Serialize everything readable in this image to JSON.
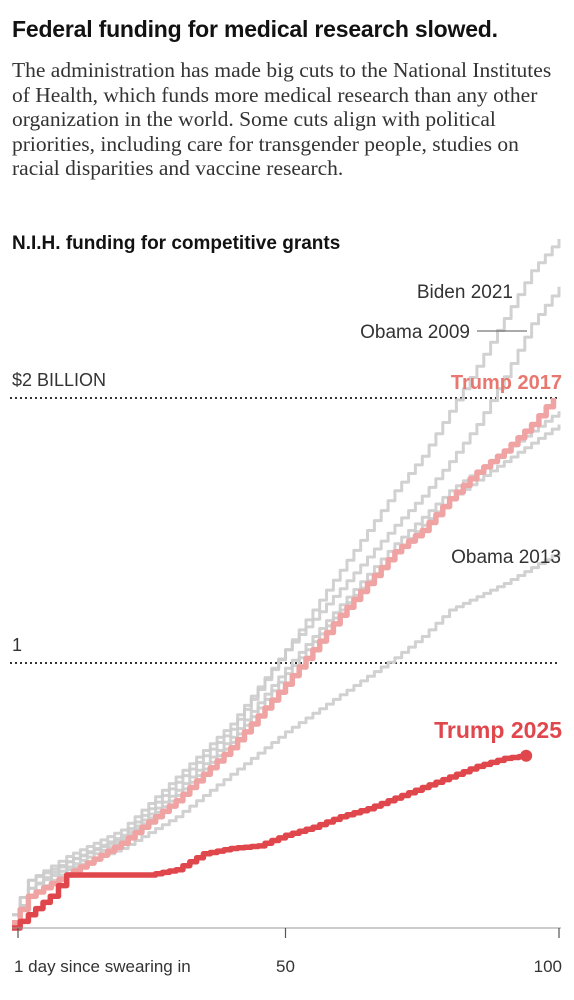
{
  "headline": "Federal funding for medical research slowed.",
  "dek": "The administration has made big cuts to the National Institutes of Health, which funds more medical research than any other organization in the world. Some cuts align with political priorities, including care for transgender people, studies on racial disparities and vaccine research.",
  "colors": {
    "trump2025": "#e0474c",
    "trump2017": "#f0a3a3",
    "trump2017_label": "#e8776f",
    "others": "#cccccc",
    "dots": "#333333"
  },
  "chart_data": {
    "type": "line",
    "title": "N.I.H. funding for competitive grants",
    "xlabel": "",
    "ylabel": "",
    "xlim": [
      0,
      100
    ],
    "ylim": [
      0,
      2.6
    ],
    "x_ticks": [
      {
        "value": 1,
        "label": "1 day since swearing in"
      },
      {
        "value": 50,
        "label": "50"
      },
      {
        "value": 100,
        "label": "100"
      }
    ],
    "y_gridlines": [
      {
        "value": 1,
        "label": "1"
      },
      {
        "value": 2,
        "label": "$2 BILLION"
      }
    ],
    "series": [
      {
        "name": "Biden 2021",
        "highlight": false,
        "x": [
          0,
          3,
          10,
          20,
          30,
          40,
          50,
          60,
          70,
          75,
          80,
          85,
          90,
          95,
          100
        ],
        "y": [
          0.05,
          0.18,
          0.25,
          0.35,
          0.55,
          0.75,
          1.05,
          1.35,
          1.65,
          1.78,
          1.95,
          2.12,
          2.3,
          2.48,
          2.6
        ]
      },
      {
        "name": "Obama 2009",
        "highlight": false,
        "x": [
          0,
          3,
          10,
          20,
          30,
          40,
          50,
          60,
          70,
          75,
          80,
          85,
          90,
          95,
          100
        ],
        "y": [
          0.05,
          0.18,
          0.27,
          0.37,
          0.57,
          0.77,
          1.05,
          1.28,
          1.52,
          1.63,
          1.76,
          1.9,
          2.08,
          2.28,
          2.42
        ]
      },
      {
        "name": "",
        "highlight": false,
        "x": [
          0,
          3,
          10,
          20,
          30,
          40,
          50,
          60,
          70,
          80,
          90,
          100
        ],
        "y": [
          0.02,
          0.15,
          0.25,
          0.34,
          0.52,
          0.72,
          0.98,
          1.22,
          1.45,
          1.65,
          1.8,
          1.95
        ]
      },
      {
        "name": "",
        "highlight": false,
        "x": [
          0,
          3,
          10,
          20,
          30,
          40,
          50,
          60,
          70,
          80,
          90,
          100
        ],
        "y": [
          0.02,
          0.15,
          0.23,
          0.33,
          0.5,
          0.7,
          0.96,
          1.2,
          1.42,
          1.62,
          1.76,
          1.9
        ]
      },
      {
        "name": "Obama 2013",
        "highlight": false,
        "x": [
          0,
          3,
          10,
          20,
          30,
          40,
          50,
          60,
          70,
          75,
          80,
          90,
          100
        ],
        "y": [
          0.02,
          0.12,
          0.22,
          0.3,
          0.42,
          0.58,
          0.74,
          0.88,
          1.02,
          1.1,
          1.2,
          1.3,
          1.42
        ]
      },
      {
        "name": "Trump 2017",
        "highlight": true,
        "x": [
          0,
          3,
          10,
          20,
          30,
          40,
          50,
          60,
          70,
          75,
          80,
          85,
          90,
          95,
          99
        ],
        "y": [
          0.02,
          0.12,
          0.2,
          0.32,
          0.48,
          0.68,
          0.92,
          1.18,
          1.42,
          1.5,
          1.62,
          1.72,
          1.8,
          1.9,
          2.0
        ]
      },
      {
        "name": "Trump 2025",
        "highlight": true,
        "x": [
          0,
          3,
          7,
          10,
          15,
          20,
          25,
          30,
          35,
          40,
          45,
          50,
          55,
          60,
          65,
          70,
          75,
          80,
          85,
          90,
          94
        ],
        "y": [
          0.0,
          0.05,
          0.12,
          0.2,
          0.2,
          0.2,
          0.2,
          0.22,
          0.28,
          0.3,
          0.31,
          0.35,
          0.38,
          0.42,
          0.45,
          0.49,
          0.53,
          0.57,
          0.61,
          0.64,
          0.65
        ]
      }
    ]
  }
}
